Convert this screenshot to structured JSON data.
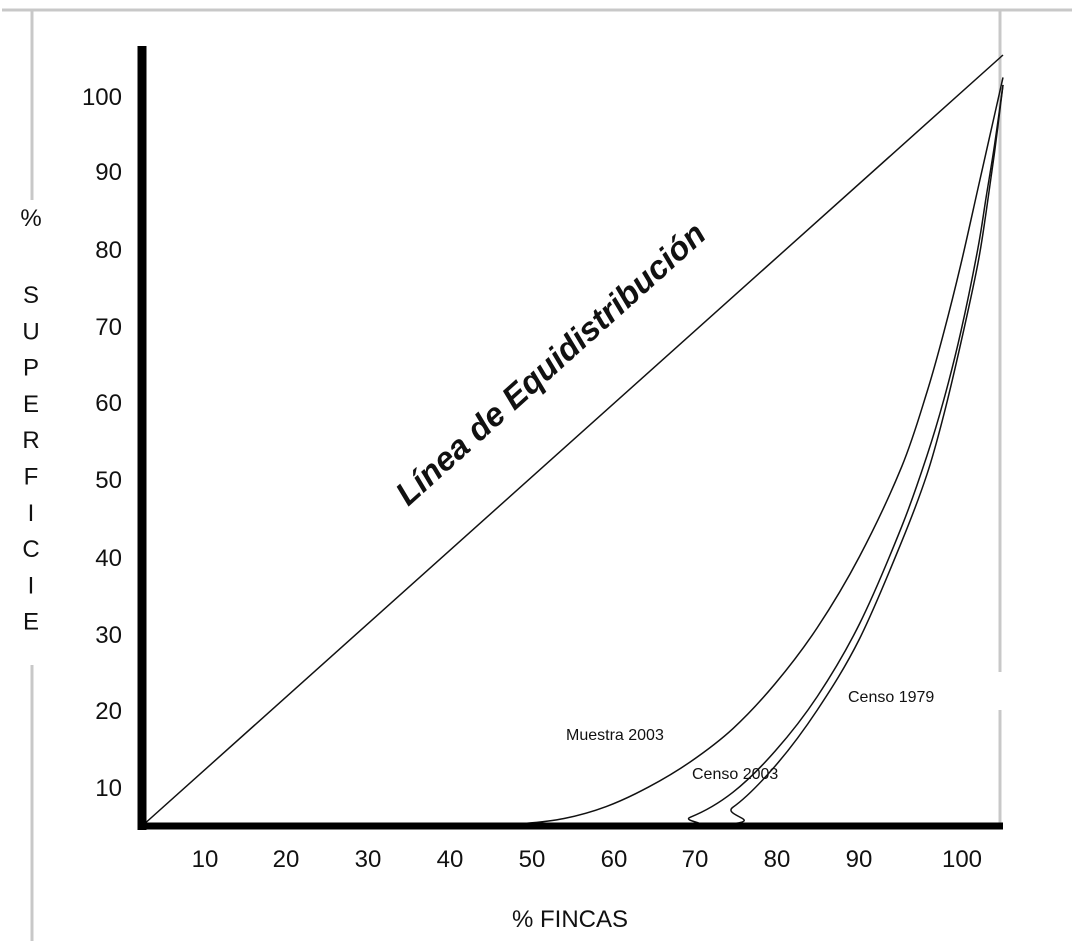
{
  "chart_data": {
    "type": "line",
    "xlabel": "% FINCAS",
    "ylabel": "% SUPERFICIE",
    "ylabel_prefix": "%",
    "ylabel_letters": [
      "S",
      "U",
      "P",
      "E",
      "R",
      "F",
      "I",
      "C",
      "I",
      "E"
    ],
    "xlim": [
      0,
      102
    ],
    "ylim": [
      0,
      103
    ],
    "x_ticks": [
      "10",
      "20",
      "30",
      "40",
      "50",
      "60",
      "70",
      "80",
      "90",
      "100"
    ],
    "y_ticks": [
      "10",
      "20",
      "30",
      "40",
      "50",
      "60",
      "70",
      "80",
      "90",
      "100"
    ],
    "equidistribution": {
      "label": "Línea de Equidistribución",
      "x": [
        0,
        102
      ],
      "y": [
        0,
        103
      ]
    },
    "series": [
      {
        "name": "Muestra 2003",
        "x": [
          0,
          40,
          45,
          50,
          55,
          60,
          65,
          70,
          75,
          80,
          85,
          90,
          93,
          95,
          97,
          99,
          100,
          101,
          102
        ],
        "y": [
          0,
          0,
          0.3,
          1.0,
          2.6,
          5.2,
          8.6,
          13,
          19,
          26.5,
          36,
          48,
          58,
          66,
          75,
          85,
          90,
          95,
          100
        ]
      },
      {
        "name": "Censo 2003",
        "x": [
          0,
          60,
          65,
          70,
          75,
          80,
          85,
          90,
          93,
          95,
          97,
          99,
          100,
          101,
          102
        ],
        "y": [
          0,
          0,
          1.2,
          4.5,
          10,
          17.3,
          27,
          40,
          49.5,
          57,
          66,
          77,
          84,
          91,
          99
        ]
      },
      {
        "name": "Censo 1979",
        "x": [
          0,
          65,
          70,
          75,
          80,
          85,
          90,
          93,
          95,
          97,
          99,
          100,
          101,
          102
        ],
        "y": [
          0,
          0,
          2.5,
          8,
          15.5,
          25,
          38,
          47,
          55,
          64.5,
          75,
          82,
          90,
          99
        ]
      }
    ]
  }
}
